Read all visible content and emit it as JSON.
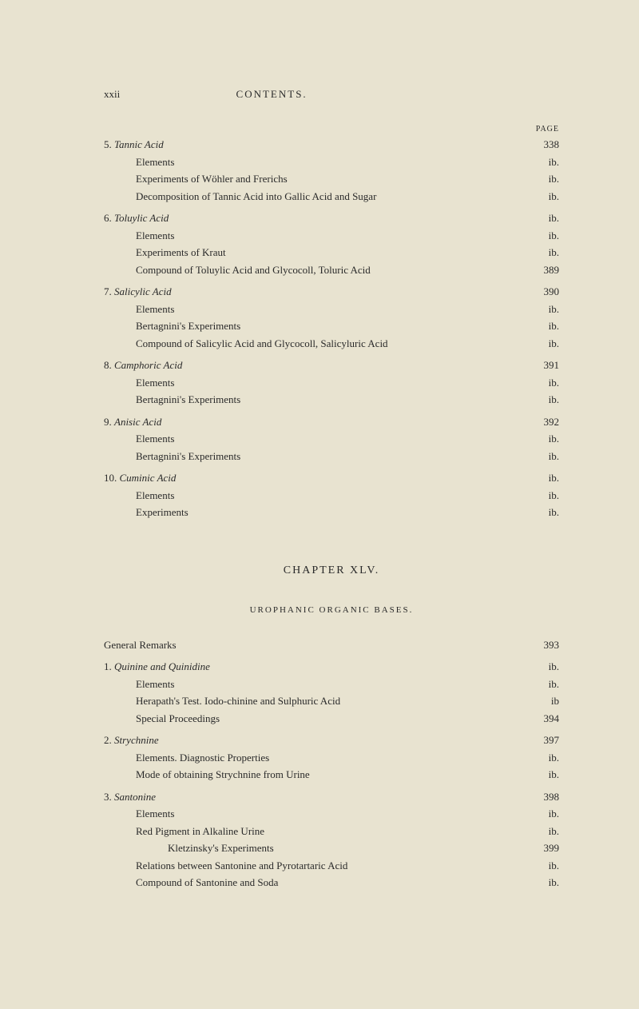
{
  "header": {
    "roman": "xxii",
    "title": "CONTENTS.",
    "pageLabel": "PAGE"
  },
  "section1": [
    {
      "indent": 0,
      "label": "5. ",
      "italic": "Tannic Acid",
      "rest": "",
      "page": "338"
    },
    {
      "indent": 1,
      "label": "Elements",
      "page": "ib."
    },
    {
      "indent": 1,
      "label": "Experiments of Wöhler and Frerichs",
      "page": "ib."
    },
    {
      "indent": 1,
      "label": "Decomposition of Tannic Acid into Gallic Acid and Sugar",
      "page": "ib."
    },
    {
      "gap": true,
      "indent": 0,
      "label": "6. ",
      "italic": "Toluylic Acid",
      "rest": "",
      "page": "ib."
    },
    {
      "indent": 1,
      "label": "Elements",
      "page": "ib."
    },
    {
      "indent": 1,
      "label": "Experiments of Kraut",
      "page": "ib."
    },
    {
      "indent": 1,
      "label": "Compound of Toluylic Acid and Glycocoll, Toluric Acid",
      "page": "389"
    },
    {
      "gap": true,
      "indent": 0,
      "label": "7. ",
      "italic": "Salicylic Acid",
      "rest": "",
      "page": "390"
    },
    {
      "indent": 1,
      "label": "Elements",
      "page": "ib."
    },
    {
      "indent": 1,
      "label": "Bertagnini's Experiments",
      "page": "ib."
    },
    {
      "indent": 1,
      "label": "Compound of Salicylic Acid and Glycocoll, Salicyluric Acid",
      "page": "ib."
    },
    {
      "gap": true,
      "indent": 0,
      "label": "8. ",
      "italic": "Camphoric Acid",
      "rest": "",
      "page": "391"
    },
    {
      "indent": 1,
      "label": "Elements",
      "page": "ib."
    },
    {
      "indent": 1,
      "label": "Bertagnini's Experiments",
      "page": "ib."
    },
    {
      "gap": true,
      "indent": 0,
      "label": "9. ",
      "italic": "Anisic Acid",
      "rest": "",
      "page": "392"
    },
    {
      "indent": 1,
      "label": "Elements",
      "page": "ib."
    },
    {
      "indent": 1,
      "label": "Bertagnini's Experiments",
      "page": "ib."
    },
    {
      "gap": true,
      "indent": 0,
      "label": "10. ",
      "italic": "Cuminic Acid",
      "rest": "",
      "page": "ib."
    },
    {
      "indent": 1,
      "label": "Elements",
      "page": "ib."
    },
    {
      "indent": 1,
      "label": "Experiments",
      "page": "ib."
    }
  ],
  "chapter": {
    "title": "CHAPTER XLV.",
    "subtitle": "UROPHANIC ORGANIC BASES."
  },
  "section2": [
    {
      "indent": 0,
      "label": "General Remarks",
      "page": "393"
    },
    {
      "gap": true,
      "indent": 0,
      "label": "1. ",
      "italic": "Quinine and Quinidine",
      "rest": "",
      "page": "ib."
    },
    {
      "indent": 1,
      "label": "Elements",
      "page": "ib."
    },
    {
      "indent": 1,
      "label": "Herapath's Test.   Iodo-chinine and Sulphuric Acid",
      "page": "ib"
    },
    {
      "indent": 1,
      "label": "Special Proceedings",
      "page": "394"
    },
    {
      "gap": true,
      "indent": 0,
      "label": "2. ",
      "italic": "Strychnine",
      "rest": "",
      "page": "397"
    },
    {
      "indent": 1,
      "label": "Elements.   Diagnostic Properties",
      "page": "ib."
    },
    {
      "indent": 1,
      "label": "Mode of obtaining Strychnine from Urine",
      "page": "ib."
    },
    {
      "gap": true,
      "indent": 0,
      "label": "3. ",
      "italic": "Santonine",
      "rest": "",
      "page": "398"
    },
    {
      "indent": 1,
      "label": "Elements",
      "page": "ib."
    },
    {
      "indent": 1,
      "label": "Red Pigment in Alkaline Urine",
      "page": "ib."
    },
    {
      "indent": 2,
      "label": "Kletzinsky's Experiments",
      "page": "399"
    },
    {
      "indent": 1,
      "label": "Relations between Santonine and Pyrotartaric Acid",
      "page": "ib."
    },
    {
      "indent": 1,
      "label": "Compound of Santonine and Soda",
      "page": "ib."
    }
  ]
}
